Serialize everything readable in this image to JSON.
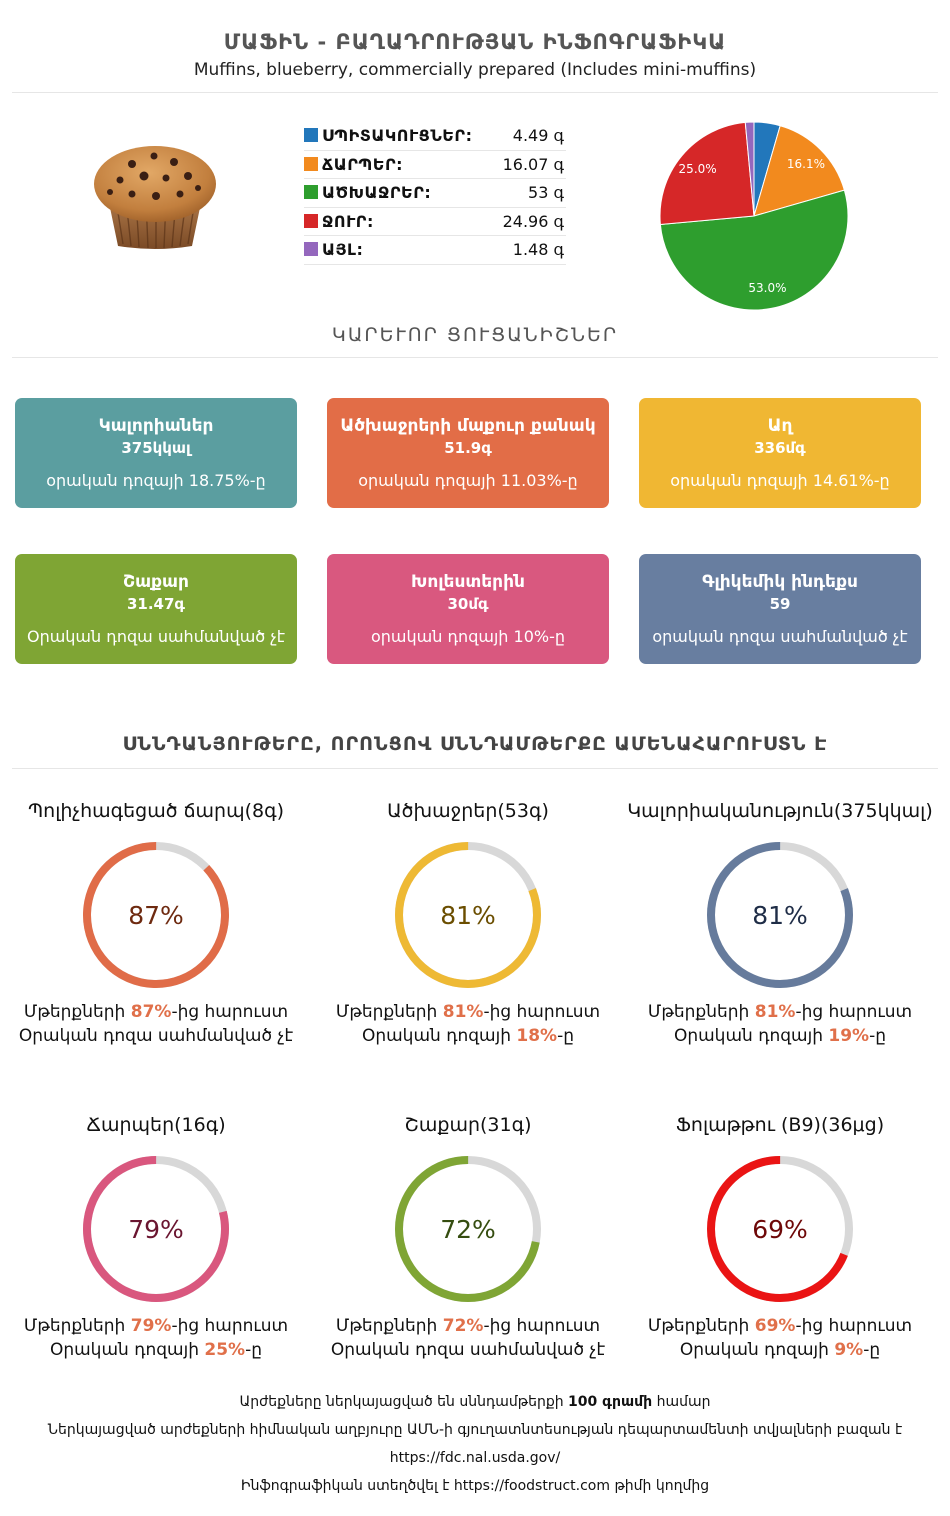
{
  "header": {
    "title": "ՄԱՖԻՆ - ԲԱՂԱԴՐՈՒԹՅԱՆ ԻՆՖՈԳՐԱՖԻԿԱ",
    "subtitle": "Muffins, blueberry, commercially prepared (Includes mini-muffins)"
  },
  "composition": {
    "items": [
      {
        "name": "ՍՊԻՏԱԿՈՒՑՆԵՐ:",
        "value": "4.49 գ",
        "color": "#2277bb"
      },
      {
        "name": "ՃԱՐՊԵՐ:",
        "value": "16.07 գ",
        "color": "#f28a1e"
      },
      {
        "name": "ԱԾԽԱՋՐԵՐ:",
        "value": "53 գ",
        "color": "#2e9e2e"
      },
      {
        "name": "ՋՈՒՐ:",
        "value": "24.96 գ",
        "color": "#d62728"
      },
      {
        "name": "ԱՅԼ:",
        "value": "1.48 գ",
        "color": "#9467bd"
      }
    ]
  },
  "chart_data": {
    "type": "pie",
    "slices": [
      {
        "label": "ՍՊԻՏԱԿՈՒՑՆԵՐ",
        "value": 4.49,
        "color": "#2277bb"
      },
      {
        "label": "ՃԱՐՊԵՐ",
        "value": 16.07,
        "color": "#f28a1e"
      },
      {
        "label": "ԱԾԽԱՋՐԵՐ",
        "value": 53,
        "color": "#2e9e2e"
      },
      {
        "label": "ՋՈՒՐ",
        "value": 24.96,
        "color": "#d62728"
      },
      {
        "label": "ԱՅԼ",
        "value": 1.48,
        "color": "#9467bd"
      }
    ],
    "data_labels": [
      "",
      "16.1%",
      "53.0%",
      "25.0%",
      ""
    ]
  },
  "key_section": {
    "heading": "ԿԱՐԵՒՈՐ ՑՈՒՑԱՆԻՇՆԵՐ",
    "cards": [
      {
        "title": "Կալորիաներ",
        "value": "375կկալ",
        "note": "օրական դոզայի 18.75%-ը",
        "color": "#5b9ea0"
      },
      {
        "title": "Ածխաջրերի մաքուր քանակ",
        "value": "51.9գ",
        "note": "օրական դոզայի 11.03%-ը",
        "color": "#e26d47"
      },
      {
        "title": "Աղ",
        "value": "336մգ",
        "note": "օրական դոզայի 14.61%-ը",
        "color": "#f0b733"
      },
      {
        "title": "Շաքար",
        "value": "31.47գ",
        "note": "Օրական դոզա սահմանված չէ",
        "color": "#7fa534"
      },
      {
        "title": "Խոլեստերին",
        "value": "30մգ",
        "note": "օրական դոզայի 10%-ը",
        "color": "#d9587f"
      },
      {
        "title": "Գլիկեմիկ ինդեքս",
        "value": "59",
        "note": "օրական դոզա սահմանված չէ",
        "color": "#687ea0"
      }
    ]
  },
  "nutrients_section": {
    "heading": "ՍՆՆԴԱՆՅՈՒԹԵՐԸ, ՈՐՈՆՑՈՎ ՍՆՆԴԱՄԹԵՐՔԸ ԱՄԵՆԱՀԱՐՈՒՍՏՆ Է",
    "line1_prefix": "Մթերքների ",
    "line1_suffix": "-ից հարուստ",
    "line2_prefix": "Օրական դոզայի ",
    "line2_suffix": "-ը",
    "items": [
      {
        "title": "Պոլիչհագեցած ճարպ(8գ)",
        "percent": "87%",
        "fraction": 0.87,
        "color": "#e06c48",
        "text_color": "#6e2a10",
        "daily": "",
        "no_daily": "Օրական դոզա սահմանված չէ"
      },
      {
        "title": "Ածխաջրեր(53գ)",
        "percent": "81%",
        "fraction": 0.81,
        "color": "#eeb934",
        "text_color": "#6b4e00",
        "daily": "18%",
        "no_daily": ""
      },
      {
        "title": "Կալորիականություն(375կկալ)",
        "percent": "81%",
        "fraction": 0.81,
        "color": "#667b9c",
        "text_color": "#1f2d47",
        "daily": "19%",
        "no_daily": ""
      },
      {
        "title": "Ճարպեր(16գ)",
        "percent": "79%",
        "fraction": 0.79,
        "color": "#d9577e",
        "text_color": "#6a1530",
        "daily": "25%",
        "no_daily": ""
      },
      {
        "title": "Շաքար(31գ)",
        "percent": "72%",
        "fraction": 0.72,
        "color": "#7fa535",
        "text_color": "#354d10",
        "daily": "",
        "no_daily": "Օրական դոզա սահմանված չէ"
      },
      {
        "title": "Ֆոլաթթու (B9)(36μg)",
        "percent": "69%",
        "fraction": 0.69,
        "color": "#ea1414",
        "text_color": "#6e0808",
        "daily": "9%",
        "no_daily": ""
      }
    ]
  },
  "footer": {
    "line1_prefix": "Արժեքները ներկայացված են սննդամթերքի ",
    "line1_bold": "100 գրամի",
    "line1_suffix": " համար",
    "line2": "Ներկայացված արժեքների հիմնական աղբյուրը ԱՄՆ-ի գյուղատնտեսության դեպարտամենտի տվյալների բազան է",
    "line3": "https://fdc.nal.usda.gov/",
    "line4_prefix": "Ինֆոգրաֆիկան ստեղծվել է ",
    "line4_site": "https://foodstruct.com",
    "line4_suffix": " թիմի կողմից"
  }
}
